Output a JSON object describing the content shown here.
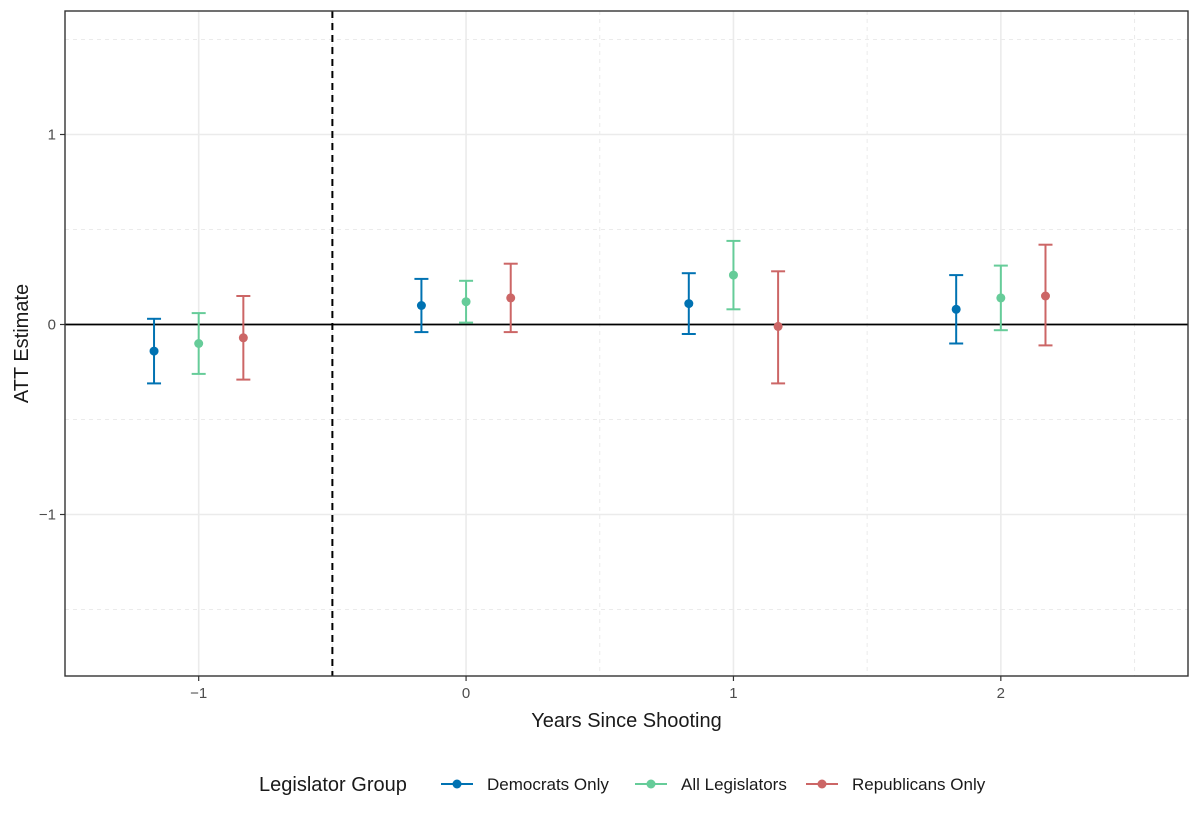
{
  "chart_data": {
    "type": "errorbar",
    "title": "",
    "xlabel": "Years Since Shooting",
    "ylabel": "ATT Estimate",
    "x_categories": [
      -1,
      0,
      1,
      2
    ],
    "x_tick_labels": [
      "−1",
      "0",
      "1",
      "2"
    ],
    "y_ticks": [
      -1,
      0,
      1
    ],
    "y_tick_labels": [
      "−1",
      "0",
      "1"
    ],
    "xlim": [
      -1.5,
      2.7
    ],
    "ylim": [
      -1.85,
      1.65
    ],
    "reference_hline": 0,
    "reference_vline": -0.5,
    "grid": true,
    "legend": {
      "title": "Legislator Group",
      "position": "bottom"
    },
    "series": [
      {
        "name": "Democrats Only",
        "color": "#0072B2",
        "offset": -0.167,
        "points": [
          {
            "x": -1,
            "estimate": -0.14,
            "lower": -0.31,
            "upper": 0.03
          },
          {
            "x": 0,
            "estimate": 0.1,
            "lower": -0.04,
            "upper": 0.24
          },
          {
            "x": 1,
            "estimate": 0.11,
            "lower": -0.05,
            "upper": 0.27
          },
          {
            "x": 2,
            "estimate": 0.08,
            "lower": -0.1,
            "upper": 0.26
          }
        ]
      },
      {
        "name": "All Legislators",
        "color": "#66CC99",
        "offset": 0,
        "points": [
          {
            "x": -1,
            "estimate": -0.1,
            "lower": -0.26,
            "upper": 0.06
          },
          {
            "x": 0,
            "estimate": 0.12,
            "lower": 0.01,
            "upper": 0.23
          },
          {
            "x": 1,
            "estimate": 0.26,
            "lower": 0.08,
            "upper": 0.44
          },
          {
            "x": 2,
            "estimate": 0.14,
            "lower": -0.03,
            "upper": 0.31
          }
        ]
      },
      {
        "name": "Republicans Only",
        "color": "#CC6666",
        "offset": 0.167,
        "points": [
          {
            "x": -1,
            "estimate": -0.07,
            "lower": -0.29,
            "upper": 0.15
          },
          {
            "x": 0,
            "estimate": 0.14,
            "lower": -0.04,
            "upper": 0.32
          },
          {
            "x": 1,
            "estimate": -0.01,
            "lower": -0.31,
            "upper": 0.28
          },
          {
            "x": 2,
            "estimate": 0.15,
            "lower": -0.11,
            "upper": 0.42
          }
        ]
      }
    ]
  }
}
